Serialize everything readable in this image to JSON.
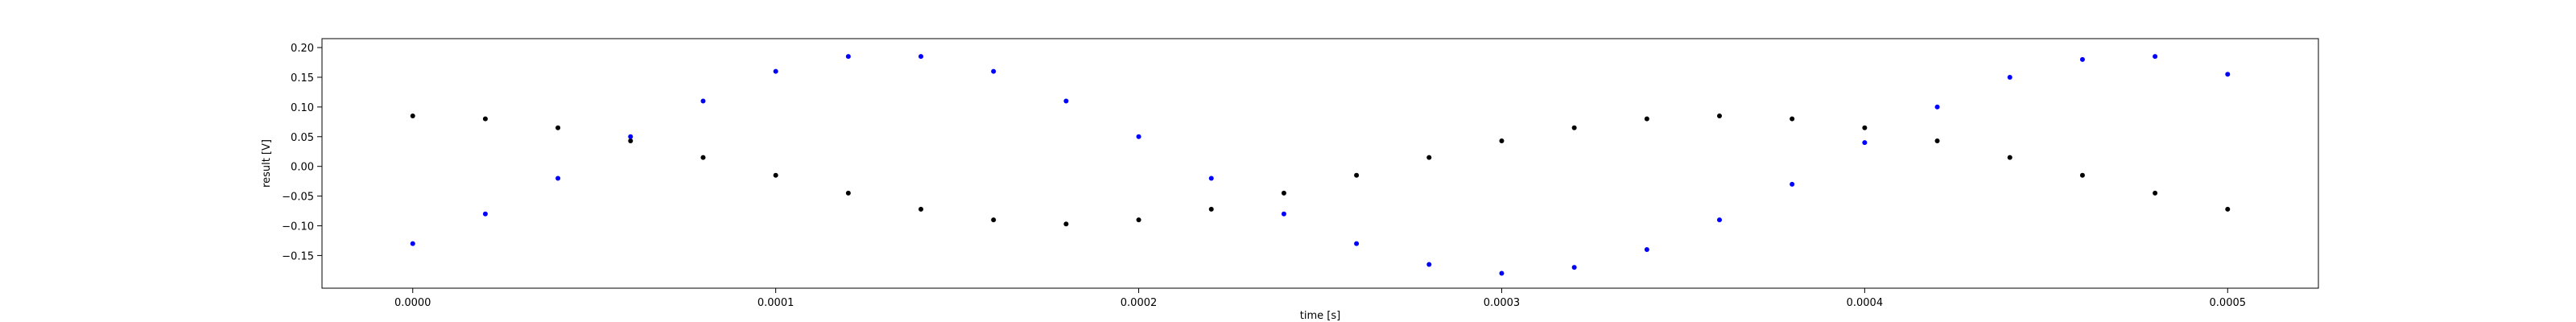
{
  "chart_data": {
    "type": "scatter",
    "xlabel": "time [s]",
    "ylabel": "result [V]",
    "xlim": [
      -2.5e-05,
      0.000525
    ],
    "ylim": [
      -0.205,
      0.215
    ],
    "xticks": [
      {
        "value": 0.0,
        "label": "0.0000"
      },
      {
        "value": 0.0001,
        "label": "0.0001"
      },
      {
        "value": 0.0002,
        "label": "0.0002"
      },
      {
        "value": 0.0003,
        "label": "0.0003"
      },
      {
        "value": 0.0004,
        "label": "0.0004"
      },
      {
        "value": 0.0005,
        "label": "0.0005"
      }
    ],
    "yticks": [
      {
        "value": 0.2,
        "label": "0.20"
      },
      {
        "value": 0.15,
        "label": "0.15"
      },
      {
        "value": 0.1,
        "label": "0.10"
      },
      {
        "value": 0.05,
        "label": "0.05"
      },
      {
        "value": 0.0,
        "label": "0.00"
      },
      {
        "value": -0.05,
        "label": "−0.05"
      },
      {
        "value": -0.1,
        "label": "−0.10"
      },
      {
        "value": -0.15,
        "label": "−0.15"
      }
    ],
    "grid": false,
    "legend": "none",
    "series": [
      {
        "color": "#000000",
        "x": [
          0.0,
          2e-05,
          4e-05,
          6e-05,
          8e-05,
          0.0001,
          0.00012,
          0.00014,
          0.00016,
          0.00018,
          0.0002,
          0.00022,
          0.00024,
          0.00026,
          0.00028,
          0.0003,
          0.00032,
          0.00034,
          0.00036,
          0.00038,
          0.0004,
          0.00042,
          0.00044,
          0.00046,
          0.00048,
          0.0005
        ],
        "y": [
          0.085,
          0.08,
          0.065,
          0.043,
          0.015,
          -0.015,
          -0.045,
          -0.072,
          -0.09,
          -0.097,
          -0.09,
          -0.072,
          -0.045,
          -0.015,
          0.015,
          0.043,
          0.065,
          0.08,
          0.085,
          0.08,
          0.065,
          0.043,
          0.015,
          -0.015,
          -0.045,
          -0.072
        ]
      },
      {
        "color": "#0000ff",
        "x": [
          0.0,
          2e-05,
          4e-05,
          6e-05,
          8e-05,
          0.0001,
          0.00012,
          0.00014,
          0.00016,
          0.00018,
          0.0002,
          0.00022,
          0.00024,
          0.00026,
          0.00028,
          0.0003,
          0.00032,
          0.00034,
          0.00036,
          0.00038,
          0.0004,
          0.00042,
          0.00044,
          0.00046,
          0.00048,
          0.0005
        ],
        "y": [
          -0.13,
          -0.08,
          -0.02,
          0.05,
          0.11,
          0.16,
          0.185,
          0.185,
          0.16,
          0.11,
          0.05,
          -0.02,
          -0.08,
          -0.13,
          -0.165,
          -0.18,
          -0.17,
          -0.14,
          -0.09,
          -0.03,
          0.04,
          0.1,
          0.15,
          0.18,
          0.185,
          0.155
        ]
      }
    ]
  }
}
